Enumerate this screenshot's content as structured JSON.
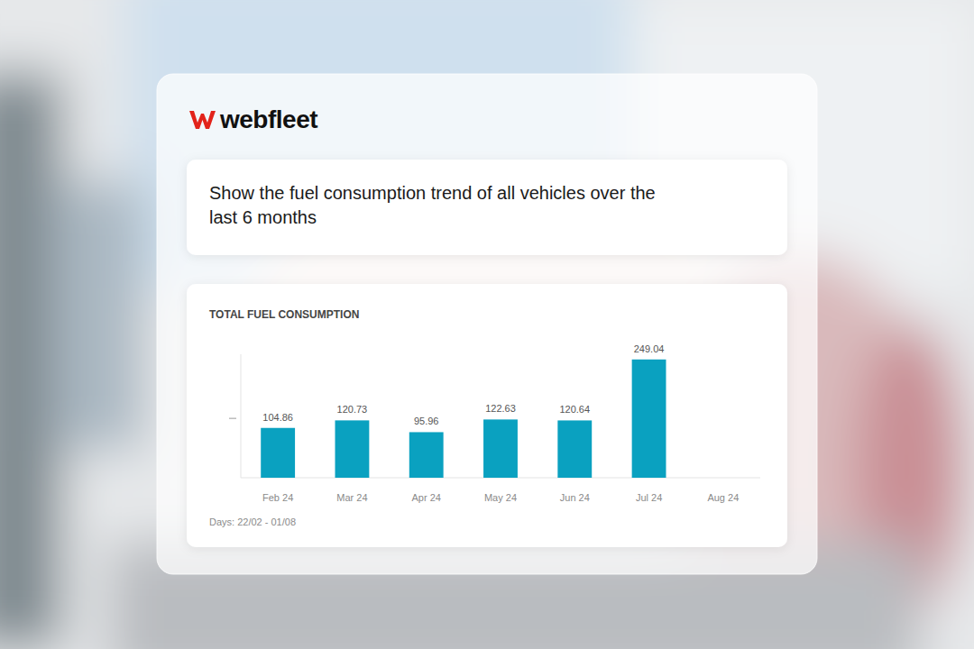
{
  "header": {
    "brand": "webfleet",
    "prompt": "Show the fuel consumption trend of all vehicles over the last 6 months"
  },
  "chart_data": {
    "type": "bar",
    "title": "TOTAL FUEL CONSUMPTION",
    "categories": [
      "Feb 24",
      "Mar 24",
      "Apr 24",
      "May 24",
      "Jun 24",
      "Jul 24",
      "Aug 24"
    ],
    "values": [
      104.86,
      120.73,
      95.96,
      122.63,
      120.64,
      249.04,
      null
    ],
    "color": "#0aa1c0",
    "ylim": [
      0,
      260
    ],
    "yticks": [
      125
    ],
    "grid": false,
    "data_labels": true,
    "tick_labels": "x",
    "note": "Days: 22/02 - 01/08"
  }
}
